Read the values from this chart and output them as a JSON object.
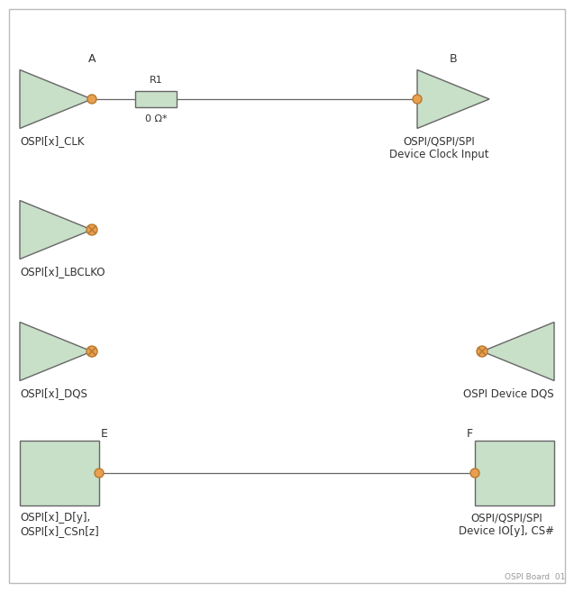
{
  "bg_color": "#ffffff",
  "triangle_fill": "#c8dfc8",
  "triangle_edge": "#666666",
  "rect_fill": "#c8dfc8",
  "rect_edge": "#666666",
  "line_color": "#666666",
  "dot_fill": "#e8a050",
  "dot_edge": "#b87830",
  "resistor_fill": "#c8dfc8",
  "resistor_edge": "#666666",
  "cross_color": "#b87830",
  "label_A": "A",
  "label_B": "B",
  "label_E": "E",
  "label_F": "F",
  "label_R1": "R1",
  "label_ohm": "0 Ω*",
  "label_clk": "OSPI[x]_CLK",
  "label_lbclko": "OSPI[x]_LBCLKO",
  "label_dqs_left": "OSPI[x]_DQS",
  "label_dqs_right": "OSPI Device DQS",
  "label_dio_left": "OSPI[x]_D[y],\nOSPI[x]_CSn[z]",
  "label_dio_right": "OSPI/QSPI/SPI\nDevice IO[y], CS#",
  "label_clk_right": "OSPI/QSPI/SPI\nDevice Clock Input",
  "label_board": "OSPI Board  01",
  "text_color": "#333333",
  "watermark_color": "#999999",
  "border_color": "#bbbbbb"
}
